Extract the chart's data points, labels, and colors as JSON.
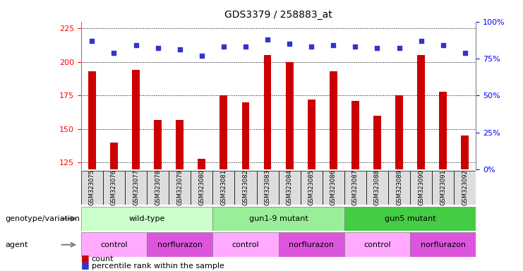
{
  "title": "GDS3379 / 258883_at",
  "samples": [
    "GSM323075",
    "GSM323076",
    "GSM323077",
    "GSM323078",
    "GSM323079",
    "GSM323080",
    "GSM323081",
    "GSM323082",
    "GSM323083",
    "GSM323084",
    "GSM323085",
    "GSM323086",
    "GSM323087",
    "GSM323088",
    "GSM323089",
    "GSM323090",
    "GSM323091",
    "GSM323092"
  ],
  "counts": [
    193,
    140,
    194,
    157,
    157,
    128,
    175,
    170,
    205,
    200,
    172,
    193,
    171,
    160,
    175,
    205,
    178,
    145
  ],
  "percentiles": [
    87,
    79,
    84,
    82,
    81,
    77,
    83,
    83,
    88,
    85,
    83,
    84,
    83,
    82,
    82,
    87,
    84,
    79
  ],
  "ylim_left": [
    120,
    230
  ],
  "ylim_right": [
    0,
    100
  ],
  "yticks_left": [
    125,
    150,
    175,
    200,
    225
  ],
  "yticks_right": [
    0,
    25,
    50,
    75,
    100
  ],
  "bar_color": "#cc0000",
  "dot_color": "#3333cc",
  "genotype_groups": [
    {
      "label": "wild-type",
      "start": 0,
      "end": 6,
      "color": "#ccffcc"
    },
    {
      "label": "gun1-9 mutant",
      "start": 6,
      "end": 12,
      "color": "#99ee99"
    },
    {
      "label": "gun5 mutant",
      "start": 12,
      "end": 18,
      "color": "#44cc44"
    }
  ],
  "agent_groups": [
    {
      "label": "control",
      "start": 0,
      "end": 3,
      "color": "#ffaaff"
    },
    {
      "label": "norflurazon",
      "start": 3,
      "end": 6,
      "color": "#dd55dd"
    },
    {
      "label": "control",
      "start": 6,
      "end": 9,
      "color": "#ffaaff"
    },
    {
      "label": "norflurazon",
      "start": 9,
      "end": 12,
      "color": "#dd55dd"
    },
    {
      "label": "control",
      "start": 12,
      "end": 15,
      "color": "#ffaaff"
    },
    {
      "label": "norflurazon",
      "start": 15,
      "end": 18,
      "color": "#dd55dd"
    }
  ],
  "genotype_label": "genotype/variation",
  "agent_label": "agent",
  "legend_count": "count",
  "legend_pct": "percentile rank within the sample"
}
